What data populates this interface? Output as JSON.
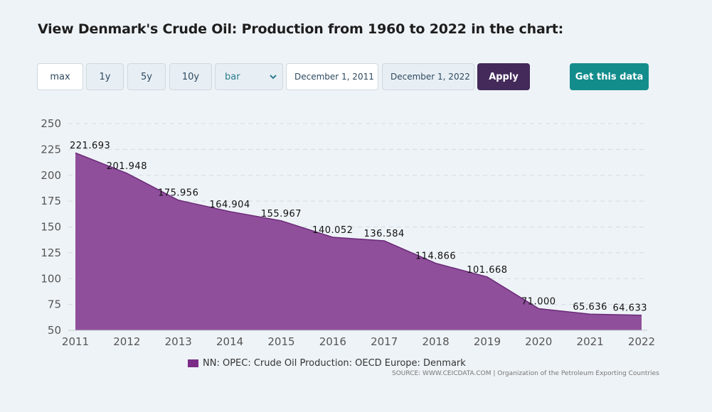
{
  "heading": "View Denmark's Crude Oil: Production from 1960 to 2022 in the chart:",
  "controls": {
    "range_buttons": [
      "max",
      "1y",
      "5y",
      "10y"
    ],
    "chart_type_selected": "bar",
    "start_date": "December 1, 2011",
    "end_date": "December 1, 2022",
    "apply_label": "Apply",
    "get_data_label": "Get this data"
  },
  "legend_label": "NN: OPEC: Crude Oil Production: OECD Europe: Denmark",
  "source": "SOURCE: WWW.CEICDATA.COM | Organization of the Petroleum Exporting Countries",
  "colors": {
    "area_fill": "#8f4f9b",
    "area_line": "#6b2b78",
    "apply_bg": "#432a5a",
    "get_data_bg": "#138c8c"
  },
  "chart_data": {
    "type": "area",
    "title": "",
    "xlabel": "",
    "ylabel": "",
    "x": [
      2011,
      2012,
      2013,
      2014,
      2015,
      2016,
      2017,
      2018,
      2019,
      2020,
      2021,
      2022
    ],
    "x_ticks": [
      "2011",
      "2012",
      "2013",
      "2014",
      "2015",
      "2016",
      "2017",
      "2018",
      "2019",
      "2020",
      "2021",
      "2022"
    ],
    "y_ticks": [
      "50",
      "75",
      "100",
      "125",
      "150",
      "175",
      "200",
      "225",
      "250"
    ],
    "ylim": [
      50,
      250
    ],
    "grid": true,
    "legend": "bottom-center",
    "series": [
      {
        "name": "NN: OPEC: Crude Oil Production: OECD Europe: Denmark",
        "values": [
          221.693,
          201.948,
          175.956,
          164.904,
          155.967,
          140.052,
          136.584,
          114.866,
          101.668,
          71.0,
          65.636,
          64.633
        ],
        "labels": [
          "221.693",
          "201.948",
          "175.956",
          "164.904",
          "155.967",
          "140.052",
          "136.584",
          "114.866",
          "101.668",
          "71.000",
          "65.636",
          "64.633"
        ]
      }
    ]
  }
}
